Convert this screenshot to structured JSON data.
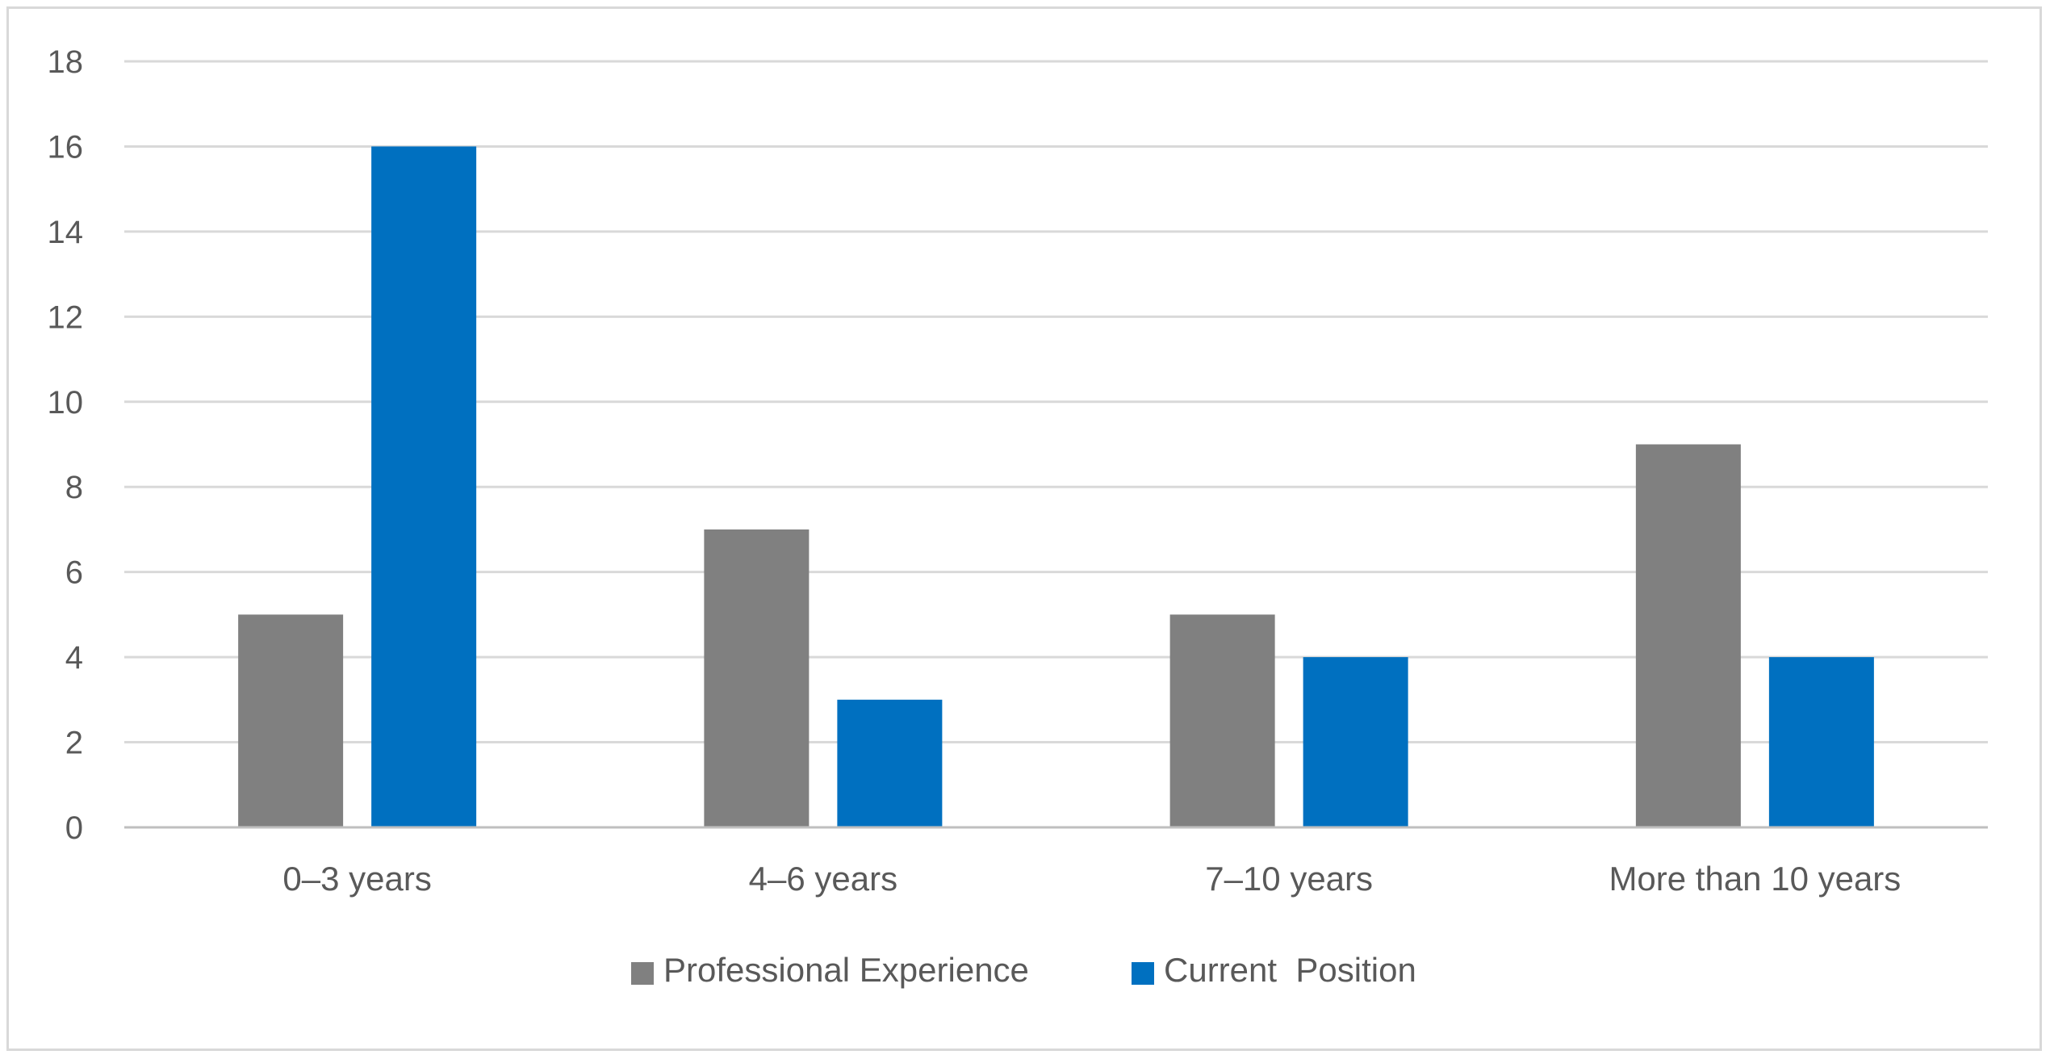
{
  "chart_data": {
    "type": "bar",
    "categories": [
      "0–3 years",
      "4–6 years",
      "7–10 years",
      "More than 10 years"
    ],
    "series": [
      {
        "name": "Professional Experience",
        "values": [
          5,
          7,
          5,
          9
        ],
        "color": "#808080"
      },
      {
        "name": "Current  Position",
        "values": [
          16,
          3,
          4,
          4
        ],
        "color": "#0070c0"
      }
    ],
    "ylim": [
      0,
      18
    ],
    "yticks": [
      0,
      2,
      4,
      6,
      8,
      10,
      12,
      14,
      16,
      18
    ],
    "grid": true,
    "legend_position": "bottom-center",
    "gridline_color": "#d9d9d9",
    "axis_color": "#bfbfbf",
    "text_color": "#595959"
  }
}
